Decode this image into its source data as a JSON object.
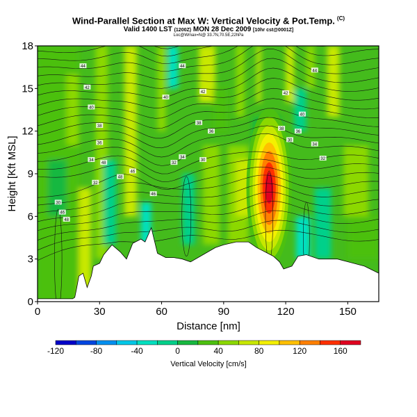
{
  "header": {
    "title": "Wind-Parallel Section at Max W: Vertical Velocity & Pot.Temp.",
    "copyright": "(C)",
    "subtitle_main": "Valid 1400 LST",
    "subtitle_utc": "(1200Z)",
    "subtitle_date": "MON 28 Dec 2009",
    "subtitle_run": "[10hr cst@0001Z]",
    "subtitle_location": "Loc@Wmax=N@ 33.7N,70.5E,22hPa"
  },
  "chart_data": {
    "type": "heatmap",
    "xlabel": "Distance [nm]",
    "ylabel": "Height [Kft MSL]",
    "xlim": [
      0,
      165
    ],
    "ylim": [
      0,
      18
    ],
    "xticks": [
      "0",
      "30",
      "60",
      "90",
      "120",
      "150"
    ],
    "yticks": [
      "0",
      "3",
      "6",
      "9",
      "12",
      "15",
      "18"
    ],
    "terrain_kft": [
      [
        0,
        0.2
      ],
      [
        17,
        0.2
      ],
      [
        18,
        0.3
      ],
      [
        19,
        1.0
      ],
      [
        20,
        1.8
      ],
      [
        22,
        2.0
      ],
      [
        24,
        1.0
      ],
      [
        26,
        1.8
      ],
      [
        27,
        2.5
      ],
      [
        30,
        2.7
      ],
      [
        32,
        3.3
      ],
      [
        36,
        4.0
      ],
      [
        40,
        3.5
      ],
      [
        43,
        3.0
      ],
      [
        46,
        4.1
      ],
      [
        50,
        4.4
      ],
      [
        52,
        4.2
      ],
      [
        55,
        5.2
      ],
      [
        58,
        3.4
      ],
      [
        62,
        3.1
      ],
      [
        66,
        3.1
      ],
      [
        70,
        3.0
      ],
      [
        74,
        2.8
      ],
      [
        80,
        3.3
      ],
      [
        86,
        3.8
      ],
      [
        90,
        4.0
      ],
      [
        96,
        4.2
      ],
      [
        102,
        4.2
      ],
      [
        106,
        3.8
      ],
      [
        110,
        3.5
      ],
      [
        114,
        3.2
      ],
      [
        117,
        2.8
      ],
      [
        119,
        2.3
      ],
      [
        123,
        2.5
      ],
      [
        126,
        3.2
      ],
      [
        130,
        3.3
      ],
      [
        136,
        3.0
      ],
      [
        145,
        3.0
      ],
      [
        158,
        2.5
      ],
      [
        165,
        2.0
      ]
    ],
    "updraft_core": {
      "center_nm": 112,
      "center_kft": 8.0,
      "max_cm_s": 160
    },
    "contour_labels": [
      "44",
      "42",
      "40",
      "38",
      "36",
      "34",
      "32",
      "30",
      "46",
      "48"
    ],
    "colorbar": {
      "label": "Vertical Velocity [cm/s]",
      "ticks": [
        "-120",
        "-80",
        "-40",
        "0",
        "40",
        "80",
        "120",
        "160"
      ],
      "levels": [
        -120,
        -100,
        -80,
        -60,
        -40,
        -20,
        0,
        20,
        40,
        60,
        80,
        100,
        120,
        140,
        160,
        180
      ],
      "colors": [
        "#0000c8",
        "#0046e0",
        "#0090f0",
        "#00c8e8",
        "#00e0c0",
        "#00d08a",
        "#18b840",
        "#4cc010",
        "#8cd800",
        "#c8e800",
        "#f4f000",
        "#ffc000",
        "#ff8000",
        "#ff3000",
        "#e00020"
      ]
    }
  }
}
